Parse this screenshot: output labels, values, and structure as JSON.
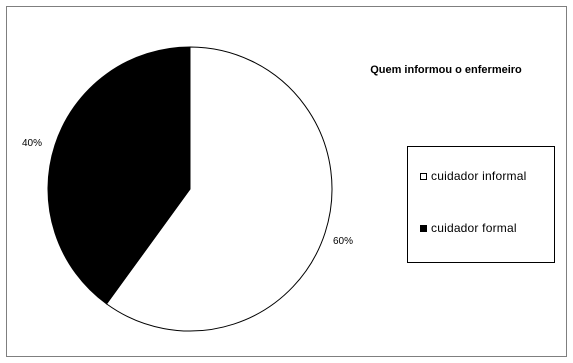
{
  "chart_data": {
    "type": "pie",
    "title": "Quem informou o enfermeiro",
    "slices": [
      {
        "name": "cuidador informal",
        "value": 60,
        "label": "60%",
        "color": "#ffffff"
      },
      {
        "name": "cuidador formal",
        "value": 40,
        "label": "40%",
        "color": "#000000"
      }
    ],
    "start_angle_deg": 0,
    "direction": "clockwise",
    "legend_position": "right",
    "outline_color": "#000000"
  }
}
